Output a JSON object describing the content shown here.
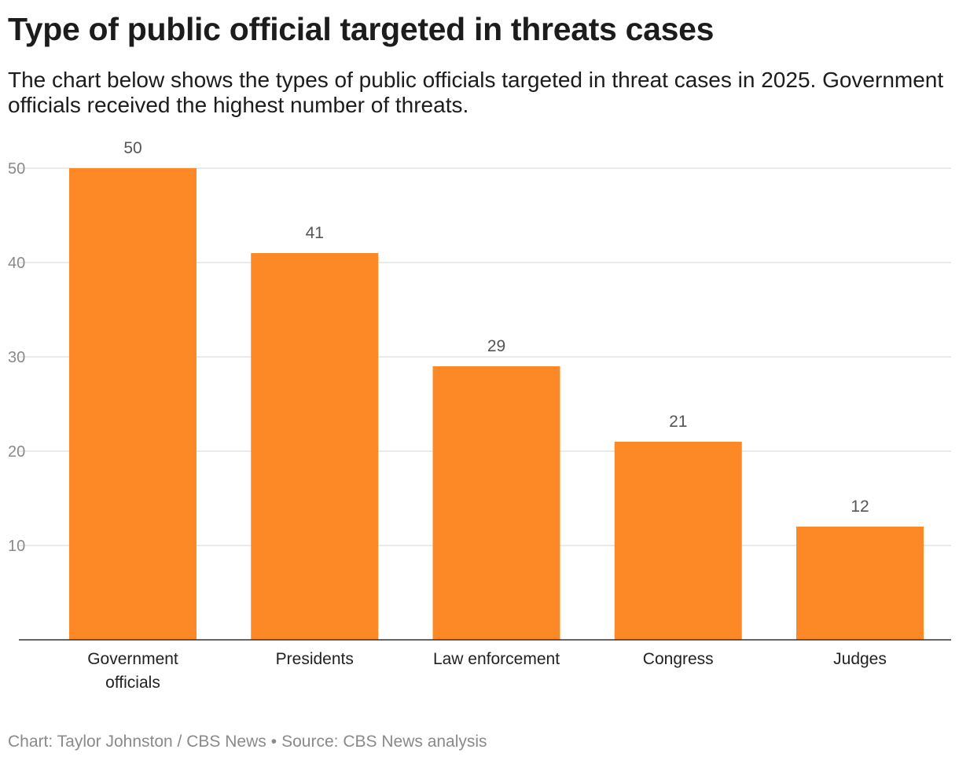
{
  "header": {
    "title": "Type of public official targeted in threats cases",
    "subtitle": "The chart below shows the types of public officials targeted in threat cases in 2025. Government officials received the highest number of threats."
  },
  "footer": {
    "credit": "Chart: Taylor Johnston / CBS News",
    "separator": "•",
    "source": "Source: CBS News analysis"
  },
  "colors": {
    "bar": "#fd8826",
    "grid": "#e3e3e3",
    "axis": "#333333"
  },
  "chart_data": {
    "type": "bar",
    "categories": [
      [
        "Government",
        "officials"
      ],
      [
        "Presidents"
      ],
      [
        "Law enforcement"
      ],
      [
        "Congress"
      ],
      [
        "Judges"
      ]
    ],
    "values": [
      50,
      41,
      29,
      21,
      12
    ],
    "ylim": [
      0,
      50
    ],
    "yticks": [
      10,
      20,
      30,
      40,
      50
    ],
    "grid": true,
    "data_labels": true,
    "legend": "none"
  }
}
